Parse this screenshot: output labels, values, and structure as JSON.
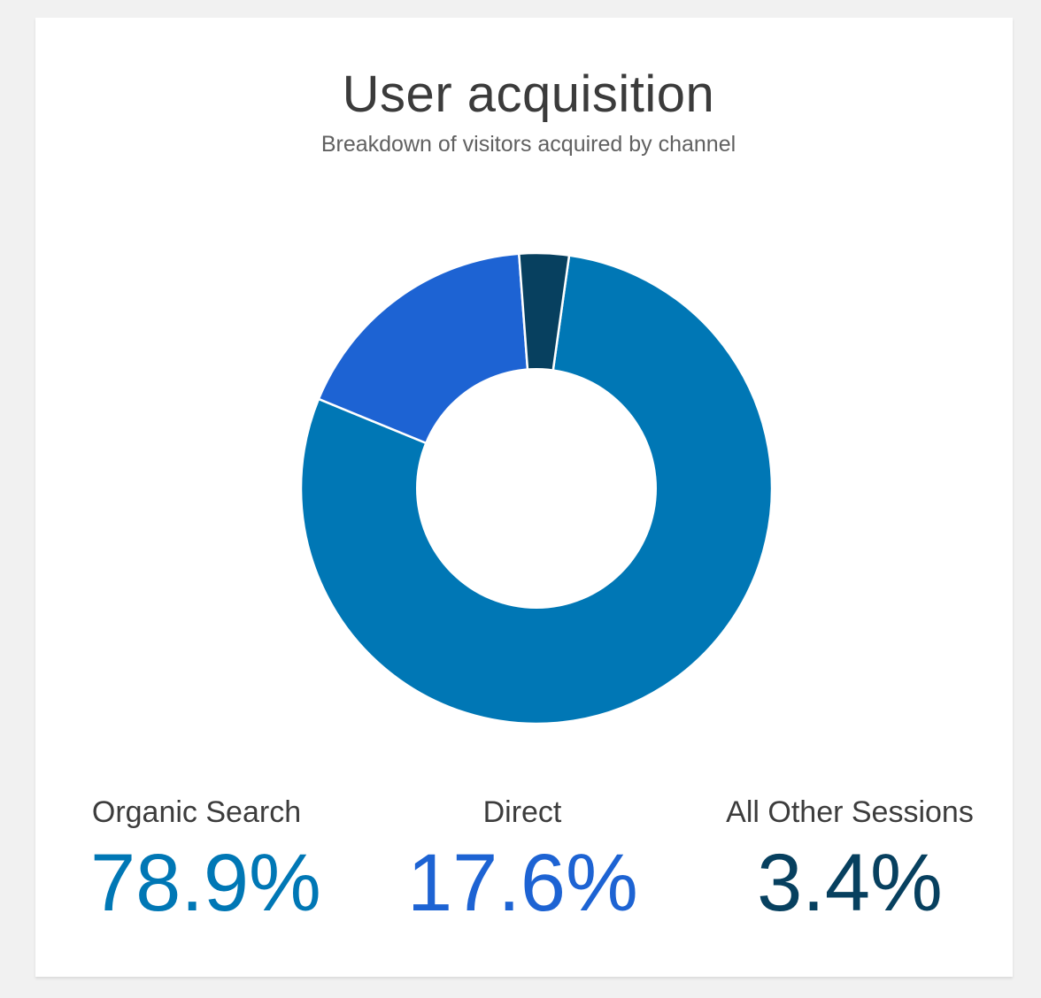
{
  "card": {
    "title": "User acquisition",
    "subtitle": "Breakdown of visitors acquired by channel"
  },
  "legend": [
    {
      "label": "Organic Search",
      "value_text": "78.9%",
      "color": "#0077b5"
    },
    {
      "label": "Direct",
      "value_text": "17.6%",
      "color": "#1d63d3"
    },
    {
      "label": "All Other Sessions",
      "value_text": "3.4%",
      "color": "#07405f"
    }
  ],
  "chart_data": {
    "type": "pie",
    "title": "User acquisition",
    "subtitle": "Breakdown of visitors acquired by channel",
    "categories": [
      "Organic Search",
      "Direct",
      "All Other Sessions"
    ],
    "values": [
      78.9,
      17.6,
      3.4
    ],
    "colors": [
      "#0077b5",
      "#1d63d3",
      "#07405f"
    ],
    "donut": true,
    "legend_position": "bottom"
  }
}
